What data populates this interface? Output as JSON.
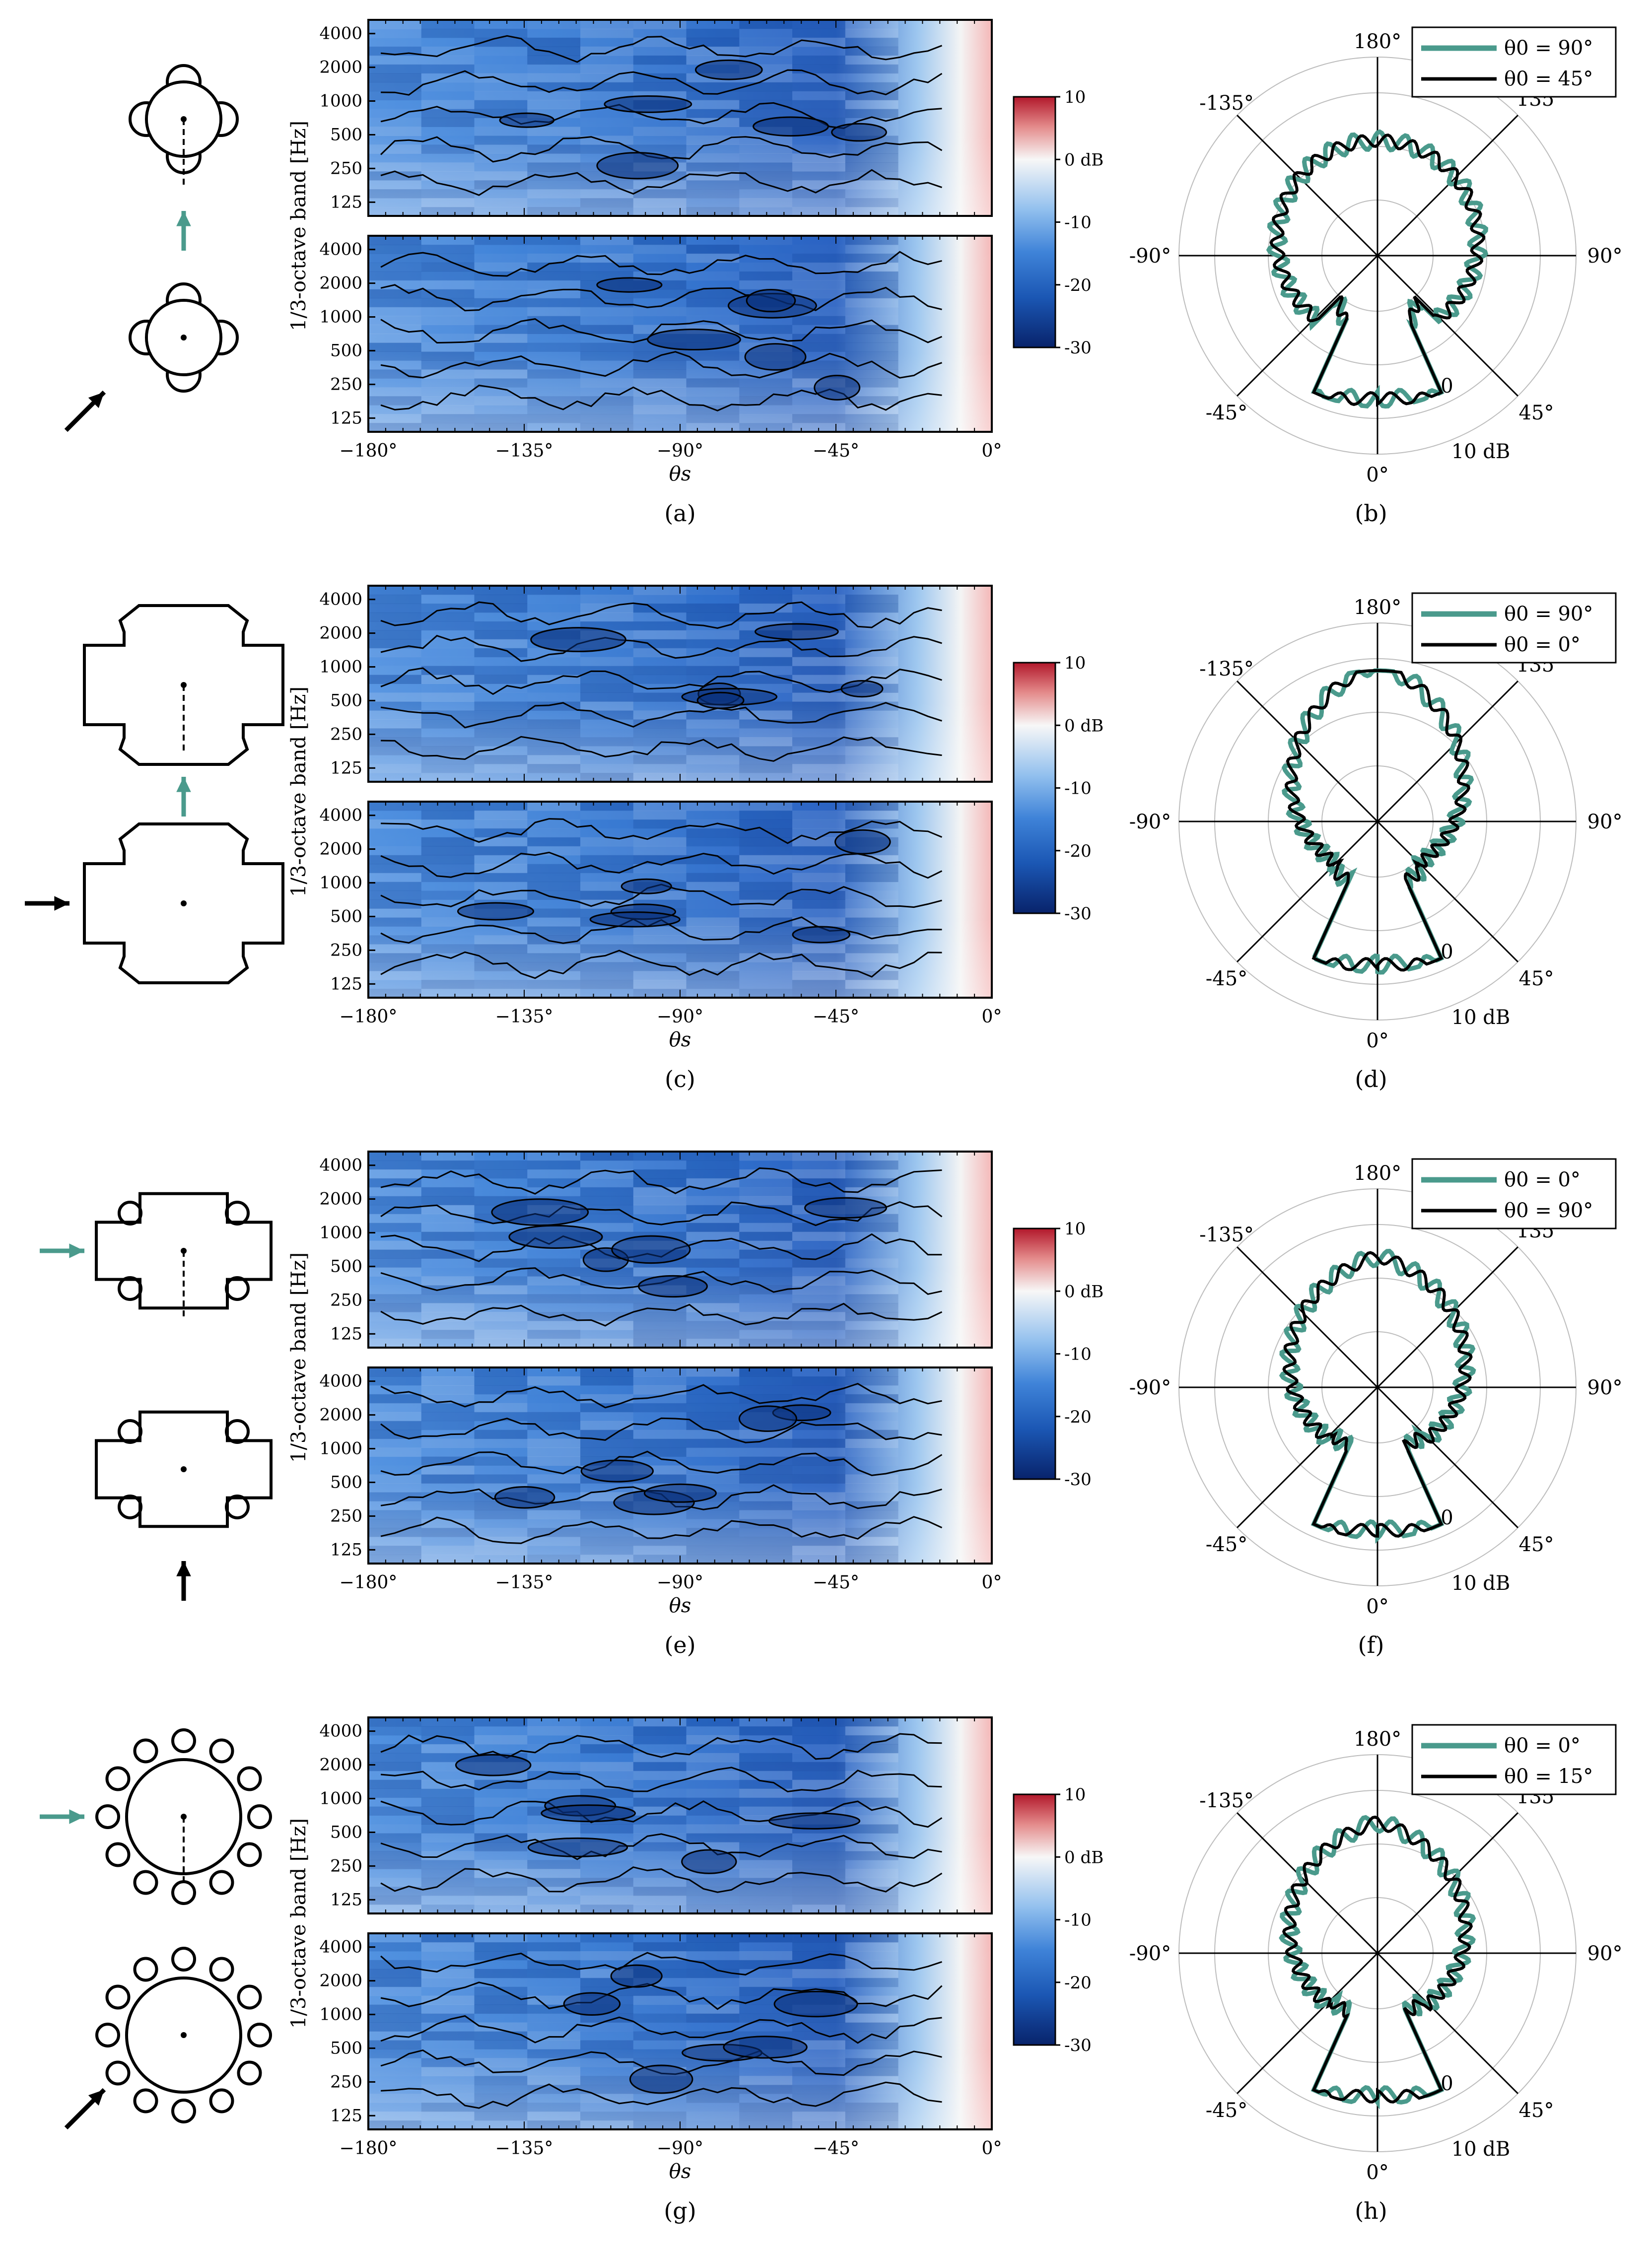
{
  "colors": {
    "accent_teal": "#4a9a8c",
    "black": "#000000",
    "cmap_low": "#08306b",
    "cmap_mid": "#f7f7f7",
    "cmap_high": "#b2182b",
    "heatmap_base": "#7fb2e6",
    "grid": "#bdbdbd"
  },
  "shared": {
    "y_axis_label": "1/3-octave band [Hz]",
    "x_axis_label": "θs",
    "y_ticks": [
      "4000",
      "2000",
      "1000",
      "500",
      "250",
      "125"
    ],
    "x_ticks": [
      "−180°",
      "−135°",
      "−90°",
      "−45°",
      "0°"
    ],
    "colorbar_ticks": [
      "10",
      "0 dB",
      "-10",
      "-20",
      "-30"
    ],
    "polar_angle_labels": [
      "180°",
      "-135°",
      "135°",
      "-90°",
      "90°",
      "-45°",
      "45°",
      "0°"
    ],
    "polar_radius_labels": [
      "0",
      "10 dB"
    ]
  },
  "rows": [
    {
      "id": "row-a-b",
      "caption_left": "(a)",
      "caption_right": "(b)",
      "shape": "quatrefoil",
      "top_arrow": {
        "color": "teal",
        "direction": "up"
      },
      "bottom_arrow": {
        "color": "black",
        "direction": "diag-up-right"
      },
      "legend": [
        {
          "label": "θ0 = 90°",
          "color": "teal"
        },
        {
          "label": "θ0 = 45°",
          "color": "black"
        }
      ]
    },
    {
      "id": "row-c-d",
      "caption_left": "(c)",
      "caption_right": "(d)",
      "shape": "octagon-notched",
      "top_arrow": {
        "color": "teal",
        "direction": "up"
      },
      "bottom_arrow": {
        "color": "black",
        "direction": "right"
      },
      "legend": [
        {
          "label": "θ0 = 90°",
          "color": "teal"
        },
        {
          "label": "θ0 = 0°",
          "color": "black"
        }
      ]
    },
    {
      "id": "row-e-f",
      "caption_left": "(e)",
      "caption_right": "(f)",
      "shape": "cross-circles",
      "top_arrow": {
        "color": "teal",
        "direction": "right"
      },
      "bottom_arrow": {
        "color": "black",
        "direction": "up"
      },
      "legend": [
        {
          "label": "θ0 = 0°",
          "color": "teal"
        },
        {
          "label": "θ0 = 90°",
          "color": "black"
        }
      ]
    },
    {
      "id": "row-g-h",
      "caption_left": "(g)",
      "caption_right": "(h)",
      "shape": "circle-ring",
      "top_arrow": {
        "color": "teal",
        "direction": "right"
      },
      "bottom_arrow": {
        "color": "black",
        "direction": "diag-up-right"
      },
      "legend": [
        {
          "label": "θ0 = 0°",
          "color": "teal"
        },
        {
          "label": "θ0 = 15°",
          "color": "black"
        }
      ]
    }
  ],
  "chart_data": [
    {
      "type": "heatmap",
      "panel": "a",
      "xlabel": "θs",
      "ylabel": "1/3-octave band [Hz]",
      "xlim": [
        -180,
        0
      ],
      "x_ticks": [
        -180,
        -135,
        -90,
        -45,
        0
      ],
      "y_categories": [
        "125",
        "250",
        "500",
        "1000",
        "2000",
        "4000"
      ],
      "colorbar": {
        "min": -30,
        "max": 10,
        "unit": "dB",
        "ticks": [
          10,
          0,
          -10,
          -20,
          -30
        ]
      },
      "subplots": 2
    },
    {
      "type": "line",
      "panel": "b",
      "polar": true,
      "radial_labels": [
        "0",
        "10 dB"
      ],
      "angle_ticks": [
        180,
        -135,
        135,
        -90,
        90,
        -45,
        45,
        0
      ],
      "series": [
        {
          "name": "θ0 = 90°"
        },
        {
          "name": "θ0 = 45°"
        }
      ],
      "legend_position": "top-right"
    },
    {
      "type": "heatmap",
      "panel": "c",
      "xlabel": "θs",
      "ylabel": "1/3-octave band [Hz]",
      "xlim": [
        -180,
        0
      ],
      "x_ticks": [
        -180,
        -135,
        -90,
        -45,
        0
      ],
      "y_categories": [
        "125",
        "250",
        "500",
        "1000",
        "2000",
        "4000"
      ],
      "colorbar": {
        "min": -30,
        "max": 10,
        "unit": "dB",
        "ticks": [
          10,
          0,
          -10,
          -20,
          -30
        ]
      },
      "subplots": 2
    },
    {
      "type": "line",
      "panel": "d",
      "polar": true,
      "radial_labels": [
        "0",
        "10 dB"
      ],
      "angle_ticks": [
        180,
        -135,
        135,
        -90,
        90,
        -45,
        45,
        0
      ],
      "series": [
        {
          "name": "θ0 = 90°"
        },
        {
          "name": "θ0 = 0°"
        }
      ],
      "legend_position": "top-right"
    },
    {
      "type": "heatmap",
      "panel": "e",
      "xlabel": "θs",
      "ylabel": "1/3-octave band [Hz]",
      "xlim": [
        -180,
        0
      ],
      "x_ticks": [
        -180,
        -135,
        -90,
        -45,
        0
      ],
      "y_categories": [
        "125",
        "250",
        "500",
        "1000",
        "2000",
        "4000"
      ],
      "colorbar": {
        "min": -30,
        "max": 10,
        "unit": "dB",
        "ticks": [
          10,
          0,
          -10,
          -20,
          -30
        ]
      },
      "subplots": 2
    },
    {
      "type": "line",
      "panel": "f",
      "polar": true,
      "radial_labels": [
        "0",
        "10 dB"
      ],
      "angle_ticks": [
        180,
        -135,
        135,
        -90,
        90,
        -45,
        45,
        0
      ],
      "series": [
        {
          "name": "θ0 = 0°"
        },
        {
          "name": "θ0 = 90°"
        }
      ],
      "legend_position": "top-right"
    },
    {
      "type": "heatmap",
      "panel": "g",
      "xlabel": "θs",
      "ylabel": "1/3-octave band [Hz]",
      "xlim": [
        -180,
        0
      ],
      "x_ticks": [
        -180,
        -135,
        -90,
        -45,
        0
      ],
      "y_categories": [
        "125",
        "250",
        "500",
        "1000",
        "2000",
        "4000"
      ],
      "colorbar": {
        "min": -30,
        "max": 10,
        "unit": "dB",
        "ticks": [
          10,
          0,
          -10,
          -20,
          -30
        ]
      },
      "subplots": 2
    },
    {
      "type": "line",
      "panel": "h",
      "polar": true,
      "radial_labels": [
        "0",
        "10 dB"
      ],
      "angle_ticks": [
        180,
        -135,
        135,
        -90,
        90,
        -45,
        45,
        0
      ],
      "series": [
        {
          "name": "θ0 = 0°"
        },
        {
          "name": "θ0 = 15°"
        }
      ],
      "legend_position": "top-right"
    }
  ]
}
